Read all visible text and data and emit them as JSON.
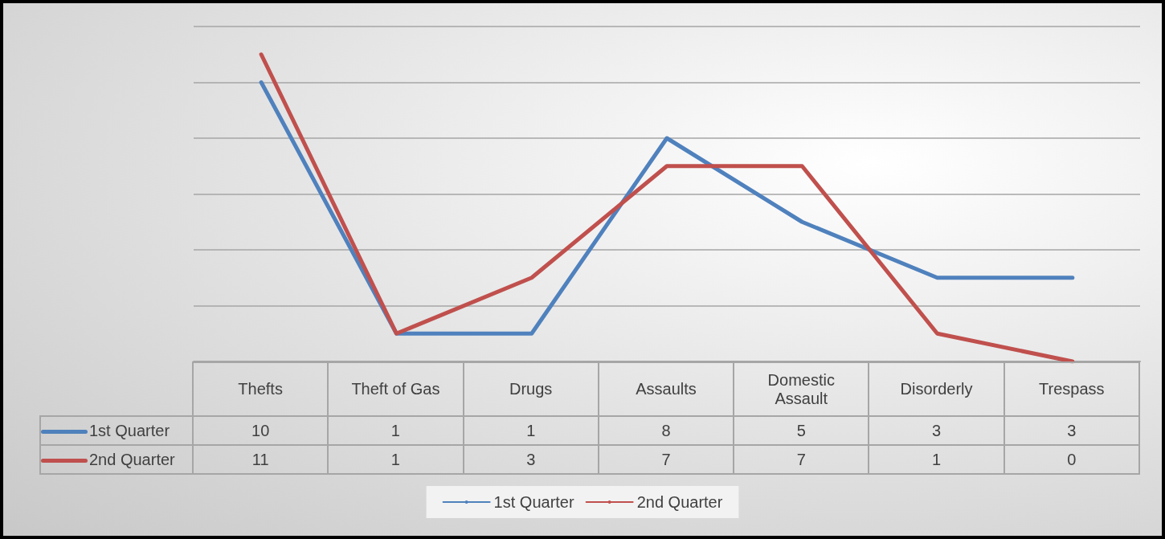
{
  "chart_data": {
    "type": "line",
    "categories": [
      "Thefts",
      "Theft of Gas",
      "Drugs",
      "Assaults",
      "Domestic Assault",
      "Disorderly",
      "Trespass"
    ],
    "series": [
      {
        "name": "1st Quarter",
        "color": "#4f81bd",
        "values": [
          10,
          1,
          1,
          8,
          5,
          3,
          3
        ]
      },
      {
        "name": "2nd Quarter",
        "color": "#c0504d",
        "values": [
          11,
          1,
          3,
          7,
          7,
          1,
          0
        ]
      }
    ],
    "ylim": [
      0,
      12
    ],
    "yticks": [
      {
        "value": 0,
        "label": null
      },
      {
        "value": 2,
        "label": null
      },
      {
        "value": 4,
        "label": null
      },
      {
        "value": 6,
        "label": null
      },
      {
        "value": 8,
        "label": null
      },
      {
        "value": 10,
        "label": null
      },
      {
        "value": 12,
        "label": null
      }
    ],
    "tick_labels": "x",
    "grid": "y",
    "data_labels": true,
    "legend": "bottom",
    "line_style": "solid"
  }
}
